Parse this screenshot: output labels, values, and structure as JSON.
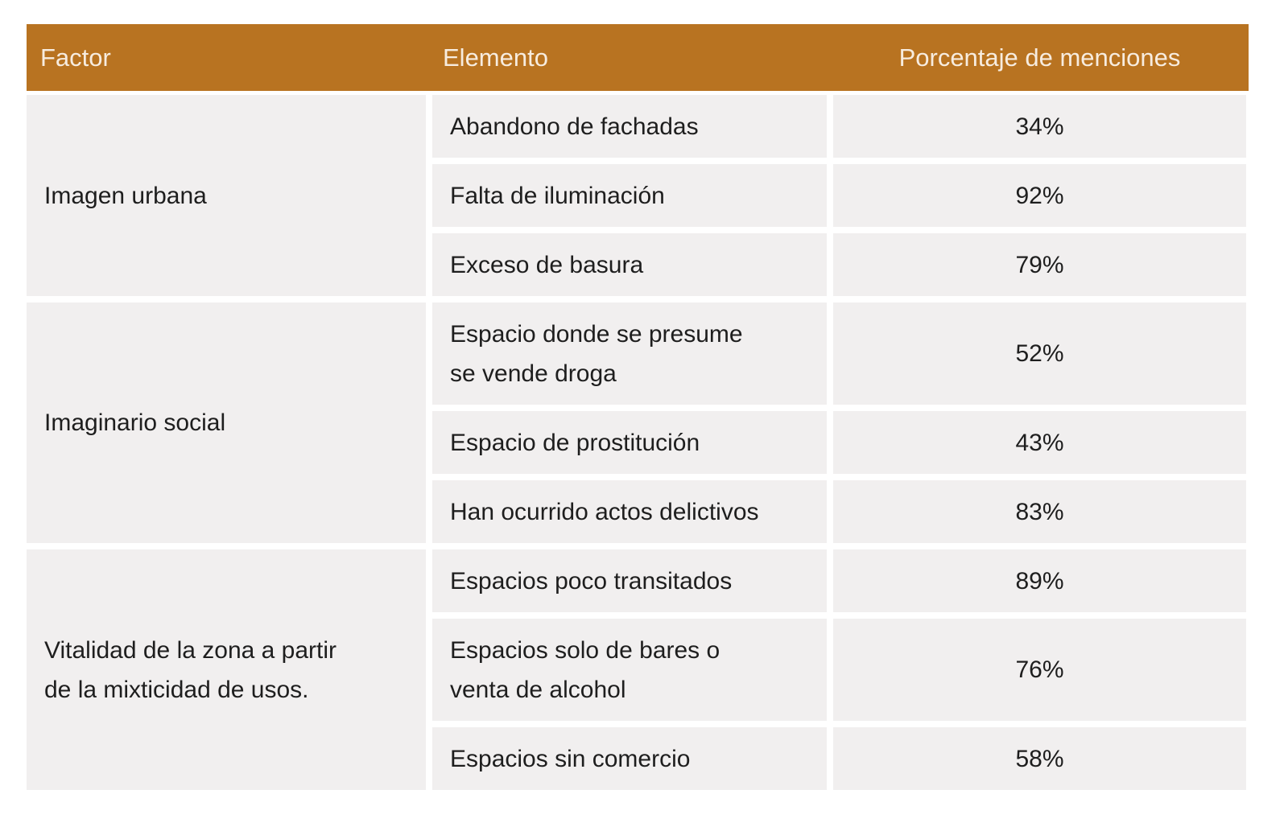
{
  "table": {
    "header": [
      "Factor",
      "Elemento",
      "Porcentaje de menciones"
    ],
    "groups": [
      {
        "factor": [
          "Imagen urbana"
        ],
        "rows": [
          {
            "element": [
              "Abandono de fachadas"
            ],
            "percent": "34%"
          },
          {
            "element": [
              "Falta de iluminación"
            ],
            "percent": "92%"
          },
          {
            "element": [
              "Exceso de basura"
            ],
            "percent": "79%"
          }
        ]
      },
      {
        "factor": [
          "Imaginario social"
        ],
        "rows": [
          {
            "element": [
              "Espacio donde se presume",
              "se vende droga"
            ],
            "percent": "52%"
          },
          {
            "element": [
              "Espacio de prostitución"
            ],
            "percent": "43%"
          },
          {
            "element": [
              "Han ocurrido actos delictivos"
            ],
            "percent": "83%"
          }
        ]
      },
      {
        "factor": [
          "Vitalidad de la zona a partir",
          "de la mixticidad de usos."
        ],
        "rows": [
          {
            "element": [
              "Espacios poco transitados"
            ],
            "percent": "89%"
          },
          {
            "element": [
              "Espacios solo de bares o",
              "venta de alcohol"
            ],
            "percent": "76%"
          },
          {
            "element": [
              "Espacios sin comercio"
            ],
            "percent": "58%"
          }
        ]
      }
    ]
  }
}
